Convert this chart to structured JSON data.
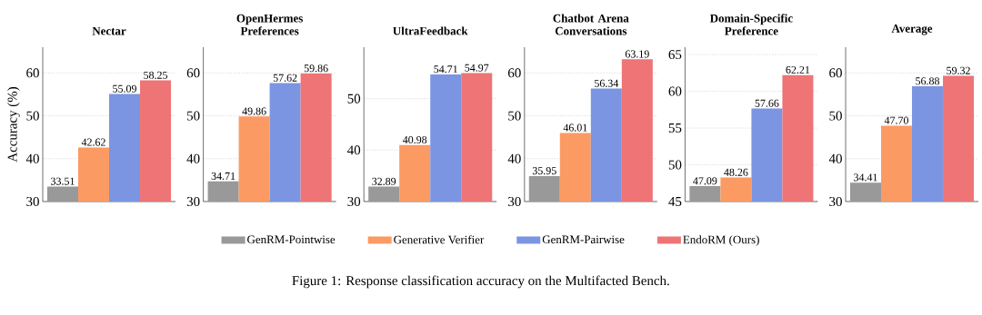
{
  "chart_data": [
    {
      "type": "bar",
      "title": "Nectar",
      "ylabel": "Accuracy (%)",
      "categories": [
        null
      ],
      "ylim": [
        30,
        66
      ],
      "yticks": [
        30,
        40,
        50,
        60
      ],
      "grid": "y",
      "legend": "bottom",
      "annotations": [
        "Figure 1: Response classification accuracy on the Multifacted Bench."
      ],
      "series": [
        {
          "name": "GenRM-Pointwise",
          "color": "#999999",
          "values": [
            33.51
          ],
          "value_labels": [
            "33.51"
          ]
        },
        {
          "name": "Generative Verifier",
          "color": "#fc9a63",
          "values": [
            42.62
          ],
          "value_labels": [
            "42.62"
          ]
        },
        {
          "name": "GenRM-Pairwise",
          "color": "#7b95e2",
          "values": [
            55.09
          ],
          "value_labels": [
            "55.09"
          ]
        },
        {
          "name": "EndoRM (Ours)",
          "color": "#ee7475",
          "values": [
            58.25
          ],
          "value_labels": [
            "58.25"
          ]
        }
      ]
    },
    {
      "type": "bar",
      "title": "OpenHermes Preferences",
      "categories": [
        null
      ],
      "ylim": [
        30,
        66
      ],
      "yticks": [
        30,
        40,
        50,
        60
      ],
      "grid": "y",
      "series": [
        {
          "color": "#999999",
          "values": [
            34.71
          ],
          "value_labels": [
            "34.71"
          ]
        },
        {
          "color": "#fc9a63",
          "values": [
            49.86
          ],
          "value_labels": [
            "49.86"
          ]
        },
        {
          "color": "#7b95e2",
          "values": [
            57.62
          ],
          "value_labels": [
            "57.62"
          ]
        },
        {
          "color": "#ee7475",
          "values": [
            59.86
          ],
          "value_labels": [
            "59.86"
          ]
        }
      ]
    },
    {
      "type": "bar",
      "title": "UltraFeedback",
      "categories": [
        null
      ],
      "ylim": [
        30,
        60
      ],
      "yticks": [
        30,
        40,
        50
      ],
      "grid": "y",
      "series": [
        {
          "color": "#999999",
          "values": [
            32.89
          ],
          "value_labels": [
            "32.89"
          ]
        },
        {
          "color": "#fc9a63",
          "values": [
            40.98
          ],
          "value_labels": [
            "40.98"
          ]
        },
        {
          "color": "#7b95e2",
          "values": [
            54.71
          ],
          "value_labels": [
            "54.71"
          ]
        },
        {
          "color": "#ee7475",
          "values": [
            54.97
          ],
          "value_labels": [
            "54.97"
          ]
        }
      ]
    },
    {
      "type": "bar",
      "title": "Chatbot Arena Conversations",
      "categories": [
        null
      ],
      "ylim": [
        30,
        66
      ],
      "yticks": [
        30,
        40,
        50,
        60
      ],
      "grid": "y",
      "series": [
        {
          "color": "#999999",
          "values": [
            35.95
          ],
          "value_labels": [
            "35.95"
          ]
        },
        {
          "color": "#fc9a63",
          "values": [
            46.01
          ],
          "value_labels": [
            "46.01"
          ]
        },
        {
          "color": "#7b95e2",
          "values": [
            56.34
          ],
          "value_labels": [
            "56.34"
          ]
        },
        {
          "color": "#ee7475",
          "values": [
            63.19
          ],
          "value_labels": [
            "63.19"
          ]
        }
      ]
    },
    {
      "type": "bar",
      "title": "Domain-Specific Preference",
      "categories": [
        null
      ],
      "ylim": [
        45,
        66
      ],
      "yticks": [
        45,
        50,
        55,
        60,
        65
      ],
      "grid": "y",
      "series": [
        {
          "color": "#999999",
          "values": [
            47.09
          ],
          "value_labels": [
            "47.09"
          ]
        },
        {
          "color": "#fc9a63",
          "values": [
            48.26
          ],
          "value_labels": [
            "48.26"
          ]
        },
        {
          "color": "#7b95e2",
          "values": [
            57.66
          ],
          "value_labels": [
            "57.66"
          ]
        },
        {
          "color": "#ee7475",
          "values": [
            62.21
          ],
          "value_labels": [
            "62.21"
          ]
        }
      ]
    },
    {
      "type": "bar",
      "title": "Average",
      "categories": [
        null
      ],
      "ylim": [
        30,
        66
      ],
      "yticks": [
        30,
        40,
        50,
        60
      ],
      "grid": "y",
      "series": [
        {
          "color": "#999999",
          "values": [
            34.41
          ],
          "value_labels": [
            "34.41"
          ]
        },
        {
          "color": "#fc9a63",
          "values": [
            47.7
          ],
          "value_labels": [
            "47.70"
          ]
        },
        {
          "color": "#7b95e2",
          "values": [
            56.88
          ],
          "value_labels": [
            "56.88"
          ]
        },
        {
          "color": "#ee7475",
          "values": [
            59.32
          ],
          "value_labels": [
            "59.32"
          ]
        }
      ]
    }
  ]
}
